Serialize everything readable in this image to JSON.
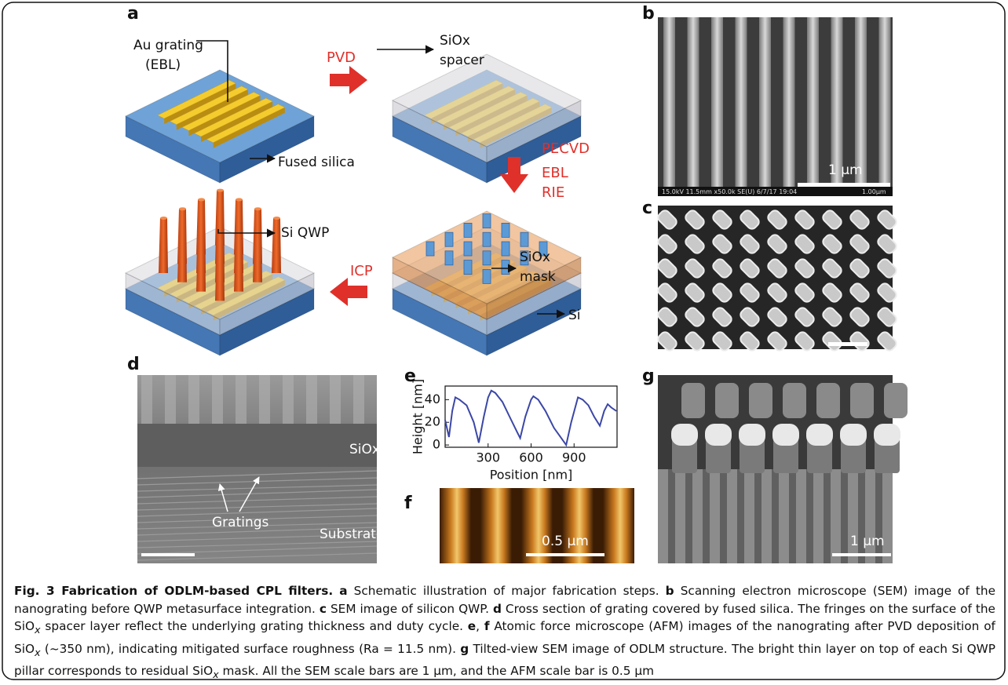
{
  "panel_a": {
    "label": "a",
    "labels": {
      "au_grating": "Au grating",
      "ebl_paren": "(EBL)",
      "pvd": "PVD",
      "siox_spacer": "SiOx",
      "spacer": "spacer",
      "fused_silica": "Fused silica",
      "pecvd": "PECVD",
      "ebl": "EBL",
      "rie": "RIE",
      "si_qwp": "Si QWP",
      "siox_mask": "SiOx",
      "mask": "mask",
      "icp": "ICP",
      "si": "Si"
    }
  },
  "panel_b": {
    "label": "b",
    "info_bar": "15.0kV 11.5mm x50.0k SE(U) 6/7/17 19:04",
    "info_scale": "1.00µm",
    "scale_bar": "1 µm"
  },
  "panel_c": {
    "label": "c"
  },
  "panel_d": {
    "label": "d",
    "labels": [
      "SiOx",
      "Gratings",
      "Substrate"
    ]
  },
  "panel_e": {
    "label": "e"
  },
  "chart_data": {
    "type": "line",
    "xlabel": "Position [nm]",
    "ylabel": "Height [nm]",
    "color": "#3b47a6",
    "x": [
      0,
      27,
      50,
      71,
      100,
      150,
      200,
      235,
      270,
      300,
      322,
      350,
      400,
      450,
      500,
      524,
      560,
      600,
      616,
      650,
      700,
      760,
      800,
      845,
      880,
      927,
      960,
      1000,
      1040,
      1080,
      1110,
      1135,
      1160,
      1195
    ],
    "values": [
      22,
      7,
      30,
      42,
      40,
      35,
      20,
      2,
      25,
      42,
      48,
      46,
      38,
      25,
      12,
      6,
      25,
      40,
      43,
      40,
      30,
      15,
      8,
      0,
      20,
      42,
      40,
      35,
      25,
      17,
      30,
      36,
      33,
      30
    ],
    "xlim": [
      0,
      1200
    ],
    "ylim": [
      -2,
      52
    ],
    "xticks": [
      300,
      600,
      900
    ],
    "yticks": [
      0,
      20,
      40
    ]
  },
  "panel_f": {
    "label": "f",
    "scale_bar": "0.5 µm"
  },
  "panel_g": {
    "label": "g",
    "scale_bar": "1 µm"
  },
  "caption": {
    "runs": [
      "Fig. 3 Fabrication of ODLM-based CPL filters.",
      "a",
      "Schematic illustration of major fabrication steps.",
      "b",
      "Scanning electron microscope (SEM) image of the nanograting before QWP metasurface integration.",
      "c",
      "SEM image of silicon QWP.",
      "d",
      "Cross section of grating covered by fused silica. The fringes on the surface of the SiO",
      "x",
      "spacer layer reflect the underlying grating thickness and duty cycle.",
      "e",
      ",",
      "f",
      "Atomic force microscope (AFM) images of the nanograting after PVD deposition of SiO",
      "x",
      "(~350 nm), indicating mitigated surface roughness (Ra = 11.5 nm).",
      "g",
      "Tilted-view SEM image of ODLM structure. The bright thin layer on top of each Si QWP pillar corresponds to residual SiO",
      "x",
      "mask. All the SEM scale bars are 1 µm, and the AFM scale bar is 0.5 µm"
    ]
  }
}
